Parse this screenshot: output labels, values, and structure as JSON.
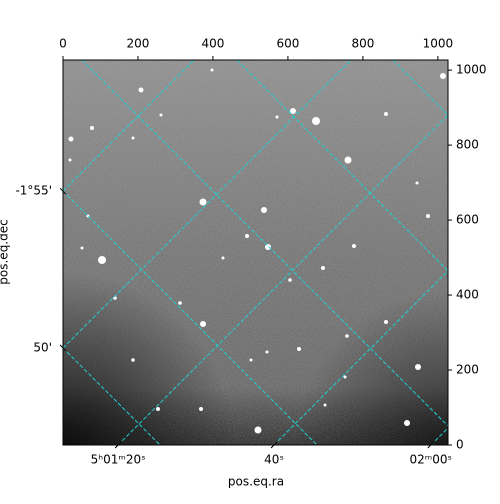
{
  "chart_data": {
    "type": "image",
    "xlabel": "pos.eq.ra",
    "ylabel": "pos.eq.dec",
    "xlim": [
      0,
      1027
    ],
    "ylim": [
      0,
      1027
    ],
    "xticks": [
      0,
      200,
      400,
      600,
      800,
      1000
    ],
    "yticks": [
      0,
      200,
      400,
      600,
      800,
      1000
    ],
    "ra_ticks": [
      {
        "value": 147,
        "label": "5ʰ01ᵐ20ˢ"
      },
      {
        "value": 563,
        "label": "40ˢ"
      },
      {
        "value": 981,
        "label": "02ᵐ00ˢ"
      }
    ],
    "dec_ticks": [
      {
        "value": 677,
        "label": "-1°55'"
      },
      {
        "value": 259,
        "label": "50'"
      }
    ],
    "grid_color": "#20d0d0"
  }
}
